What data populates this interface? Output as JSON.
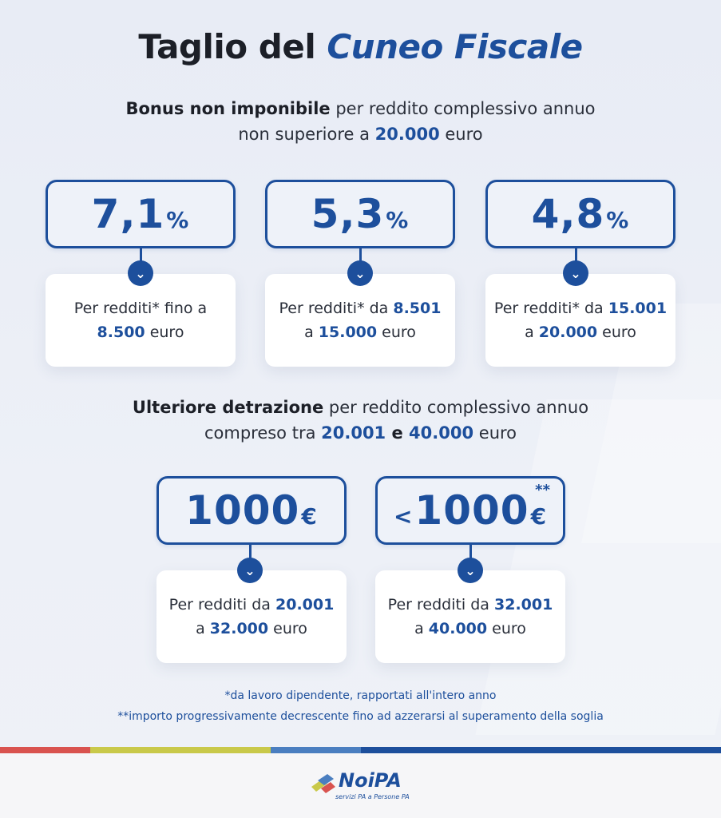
{
  "title": {
    "main": "Taglio del",
    "accent": "Cuneo Fiscale"
  },
  "section1": {
    "line1_bold": "Bonus non imponibile",
    "line1_rest": " per reddito complessivo annuo",
    "line2_pre": "non superiore a ",
    "line2_num": "20.000",
    "line2_post": " euro",
    "items": [
      {
        "value": "7,1",
        "unit": "%",
        "text_pre": "Per redditi* fino a",
        "num1": "8.500",
        "text_post": " euro"
      },
      {
        "value": "5,3",
        "unit": "%",
        "text_pre": "Per redditi* da ",
        "num1": "8.501",
        "text_mid": "a ",
        "num2": "15.000",
        "text_post": " euro"
      },
      {
        "value": "4,8",
        "unit": "%",
        "text_pre": "Per redditi* da ",
        "num1": "15.001",
        "text_mid": "a ",
        "num2": "20.000",
        "text_post": " euro"
      }
    ]
  },
  "section2": {
    "line1_bold": "Ulteriore detrazione",
    "line1_rest": " per reddito complessivo annuo",
    "line2_pre": "compreso tra ",
    "line2_num1": "20.001",
    "line2_mid": " e ",
    "line2_num2": "40.000",
    "line2_post": " euro",
    "items": [
      {
        "value": "1000",
        "unit": "€",
        "text_pre": "Per redditi da ",
        "num1": "20.001",
        "text_mid": "a ",
        "num2": "32.000",
        "text_post": " euro"
      },
      {
        "prefix": "<",
        "value": "1000",
        "unit": "€",
        "stars": "**",
        "text_pre": "Per redditi da ",
        "num1": "32.001",
        "text_mid": "a ",
        "num2": "40.000",
        "text_post": " euro"
      }
    ]
  },
  "notes": {
    "note1": "*da lavoro dipendente, rapportati all'intero anno",
    "note2": "**importo progressivamente decrescente fino ad azzerarsi al superamento della soglia"
  },
  "footer": {
    "logo_name": "NoiPA",
    "logo_tagline": "servizi PA a Persone PA"
  },
  "colors": {
    "accent": "#1d4f9c",
    "stripe_red": "#d9534f",
    "stripe_olive": "#c9c94a",
    "stripe_blue_light": "#4a7ec0",
    "stripe_blue_dark": "#1d4f9c"
  },
  "icons": {
    "chevron": "chevron-down-icon"
  }
}
